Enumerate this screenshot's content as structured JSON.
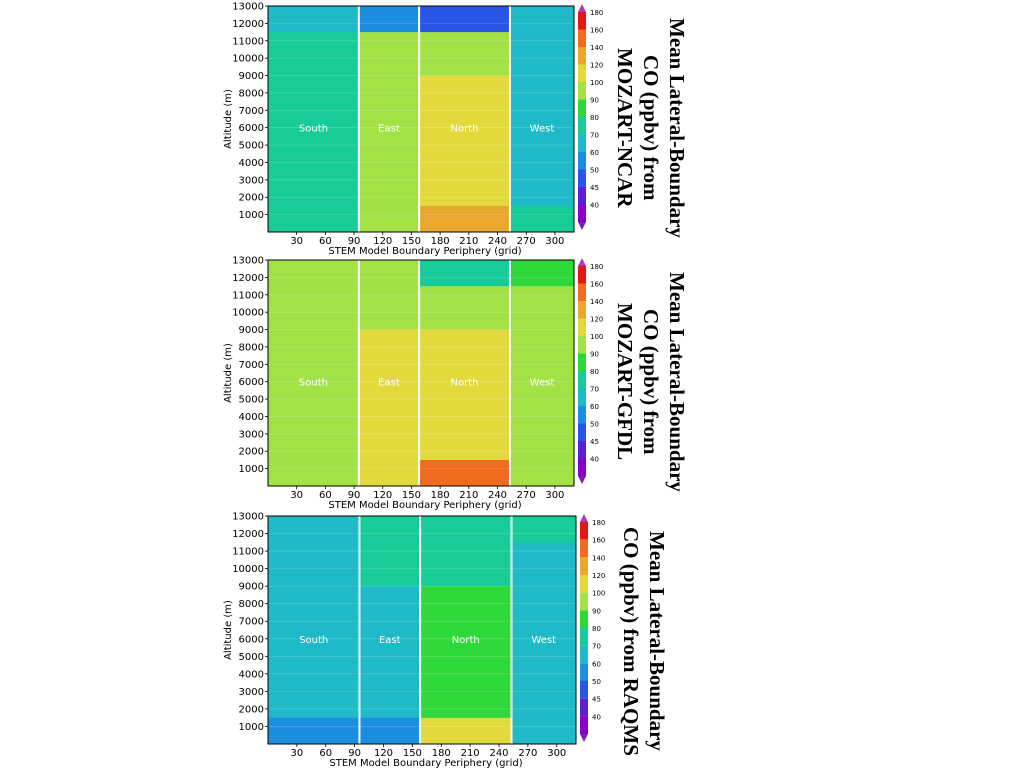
{
  "chart_data": [
    {
      "type": "heatmap",
      "title": "Mean Lateral-Boundary CO (ppbv) from MOZART-NCAR",
      "xlabel": "STEM Model Boundary Periphery (grid)",
      "ylabel": "Altitude (m)",
      "xlim": [
        0,
        320
      ],
      "ylim": [
        0,
        13000
      ],
      "xticks": [
        "30",
        "60",
        "90",
        "120",
        "150",
        "180",
        "210",
        "240",
        "270",
        "300"
      ],
      "yticks": [
        "1000",
        "2000",
        "3000",
        "4000",
        "5000",
        "6000",
        "7000",
        "8000",
        "9000",
        "10000",
        "11000",
        "12000",
        "13000"
      ],
      "boundaries_x": [
        95,
        158,
        253
      ],
      "region_labels": [
        "South",
        "East",
        "North",
        "West"
      ],
      "colorbar": {
        "levels": [
          "180",
          "160",
          "140",
          "120",
          "100",
          "90",
          "80",
          "70",
          "60",
          "50",
          "45",
          "40"
        ]
      },
      "regions": [
        {
          "label": "South",
          "x": [
            0,
            95
          ],
          "values": {
            "surface": 85,
            "mid": 80,
            "upper": 82,
            "top": 78
          }
        },
        {
          "label": "East",
          "x": [
            95,
            158
          ],
          "values": {
            "surface": 100,
            "mid": 110,
            "upper": 100,
            "top": 60
          }
        },
        {
          "label": "North",
          "x": [
            158,
            253
          ],
          "values": {
            "surface": 150,
            "mid": 125,
            "upper": 105,
            "top": 50
          }
        },
        {
          "label": "West",
          "x": [
            253,
            320
          ],
          "values": {
            "surface": 80,
            "mid": 78,
            "upper": 75,
            "top": 70
          }
        }
      ]
    },
    {
      "type": "heatmap",
      "title": "Mean Lateral-Boundary CO (ppbv) from MOZART-GFDL",
      "xlabel": "STEM Model Boundary Periphery (grid)",
      "ylabel": "Altitude (m)",
      "xlim": [
        0,
        320
      ],
      "ylim": [
        0,
        13000
      ],
      "xticks": [
        "30",
        "60",
        "90",
        "120",
        "150",
        "180",
        "210",
        "240",
        "270",
        "300"
      ],
      "yticks": [
        "1000",
        "2000",
        "3000",
        "4000",
        "5000",
        "6000",
        "7000",
        "8000",
        "9000",
        "10000",
        "11000",
        "12000",
        "13000"
      ],
      "boundaries_x": [
        95,
        158,
        253
      ],
      "region_labels": [
        "South",
        "East",
        "North",
        "West"
      ],
      "colorbar": {
        "levels": [
          "180",
          "160",
          "140",
          "120",
          "100",
          "90",
          "80",
          "70",
          "60",
          "50",
          "45",
          "40"
        ]
      },
      "regions": [
        {
          "label": "South",
          "x": [
            0,
            95
          ],
          "values": {
            "surface": 105,
            "mid": 110,
            "upper": 110,
            "top": 108
          }
        },
        {
          "label": "East",
          "x": [
            95,
            158
          ],
          "values": {
            "surface": 135,
            "mid": 125,
            "upper": 115,
            "top": 100
          }
        },
        {
          "label": "North",
          "x": [
            158,
            253
          ],
          "values": {
            "surface": 170,
            "mid": 130,
            "upper": 110,
            "top": 85
          }
        },
        {
          "label": "West",
          "x": [
            253,
            320
          ],
          "values": {
            "surface": 110,
            "mid": 105,
            "upper": 100,
            "top": 90
          }
        }
      ]
    },
    {
      "type": "heatmap",
      "title": "Mean Lateral-Boundary CO (ppbv) from RAQMS",
      "xlabel": "STEM Model Boundary Periphery (grid)",
      "ylabel": "Altitude (m)",
      "xlim": [
        0,
        320
      ],
      "ylim": [
        0,
        13000
      ],
      "xticks": [
        "30",
        "60",
        "90",
        "120",
        "150",
        "180",
        "210",
        "240",
        "270",
        "300"
      ],
      "yticks": [
        "1000",
        "2000",
        "3000",
        "4000",
        "5000",
        "6000",
        "7000",
        "8000",
        "9000",
        "10000",
        "11000",
        "12000",
        "13000"
      ],
      "boundaries_x": [
        95,
        158,
        253
      ],
      "region_labels": [
        "South",
        "East",
        "North",
        "West"
      ],
      "colorbar": {
        "levels": [
          "180",
          "160",
          "140",
          "120",
          "100",
          "90",
          "80",
          "70",
          "60",
          "50",
          "45",
          "40"
        ]
      },
      "regions": [
        {
          "label": "South",
          "x": [
            0,
            95
          ],
          "values": {
            "surface": 65,
            "mid": 75,
            "upper": 75,
            "top": 75
          }
        },
        {
          "label": "East",
          "x": [
            95,
            158
          ],
          "values": {
            "surface": 65,
            "mid": 75,
            "upper": 82,
            "top": 80
          }
        },
        {
          "label": "North",
          "x": [
            158,
            253
          ],
          "values": {
            "surface": 120,
            "mid": 95,
            "upper": 85,
            "top": 82
          }
        },
        {
          "label": "West",
          "x": [
            253,
            320
          ],
          "values": {
            "surface": 75,
            "mid": 75,
            "upper": 75,
            "top": 80
          }
        }
      ]
    }
  ],
  "colors": {
    "scale": [
      "#8B00C8",
      "#5A1FD0",
      "#2A56E8",
      "#1C8EE0",
      "#1FB9C8",
      "#18CC9A",
      "#2FD83A",
      "#A3E246",
      "#E2DA3C",
      "#E8A82E",
      "#F06B1E",
      "#E01818"
    ],
    "divider": "#ffffff",
    "region_label": "#ffffff"
  }
}
